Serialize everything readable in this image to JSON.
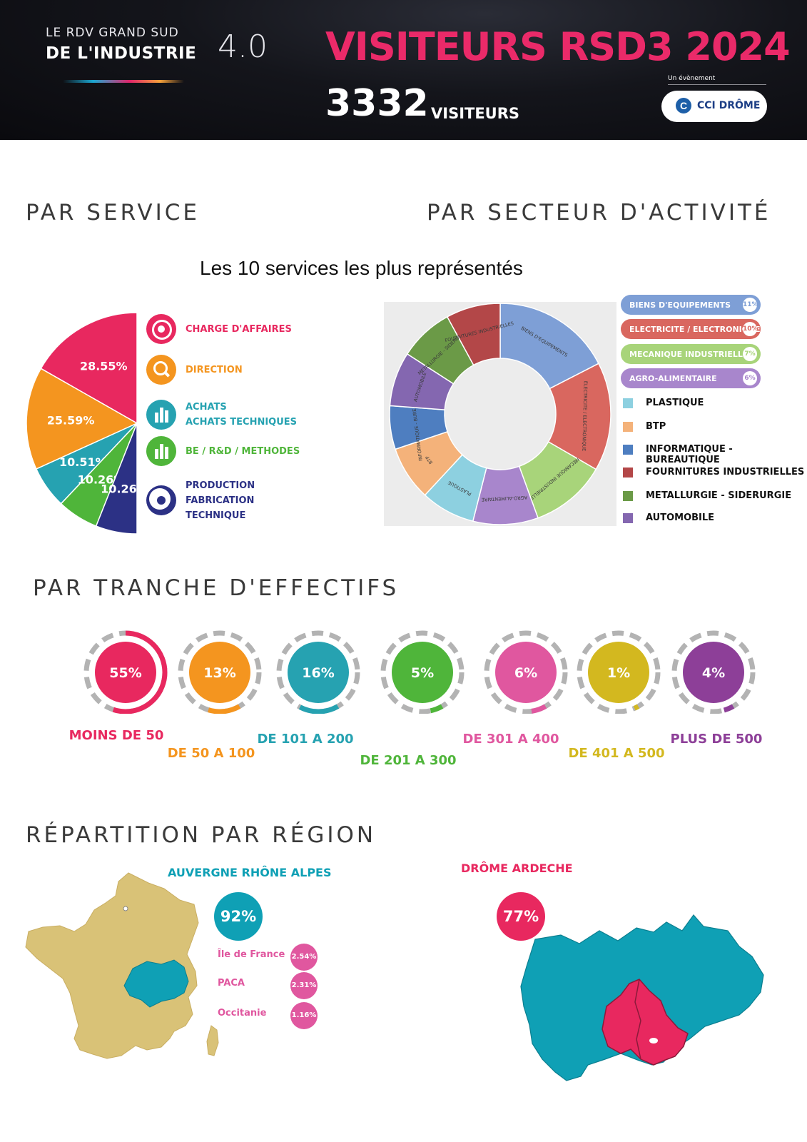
{
  "header": {
    "brand_line1": "LE RDV GRAND SUD",
    "brand_line2": "DE L'INDUSTRIE",
    "brand_version": "4.0",
    "title": "VISITEURS RSD3 2024",
    "visitor_count": "3332",
    "visitor_label": "VISITEURS",
    "event_by": "Un évènement",
    "organizer": "CCI DRÔME"
  },
  "sections": {
    "service": "PAR SERVICE",
    "activity": "PAR SECTEUR D'ACTIVITÉ",
    "headcount": "PAR TRANCHE D'EFFECTIFS",
    "region": "RÉPARTITION PAR RÉGION"
  },
  "chart_title": "Les 10 services les plus représentés",
  "chart_data": [
    {
      "type": "pie",
      "series": [
        {
          "label": "CHARGE D'AFFAIRES",
          "value": 28.55,
          "display": "28.55%",
          "color": "#e8285f"
        },
        {
          "label": "DIRECTION",
          "value": 25.59,
          "display": "25.59%",
          "color": "#f4951f"
        },
        {
          "label": "ACHATS / ACHATS TECHNIQUES",
          "value": 10.51,
          "display": "10.51%",
          "color": "#26a2b1"
        },
        {
          "label": "BE / R&D / METHODES",
          "value": 10.26,
          "display": "10.26%",
          "color": "#4fb53a"
        },
        {
          "label": "PRODUCTION FABRICATION TECHNIQUE",
          "value": 10.26,
          "display": "10.26%",
          "color": "#2c3185"
        }
      ],
      "legend": [
        {
          "lines": [
            "CHARGE D'AFFAIRES"
          ],
          "color": "#e8285f",
          "icon": "target-icon"
        },
        {
          "lines": [
            "DIRECTION"
          ],
          "color": "#f4951f",
          "icon": "search-icon"
        },
        {
          "lines": [
            "ACHATS",
            "ACHATS TECHNIQUES"
          ],
          "color": "#26a2b1",
          "icon": "bar-chart-icon"
        },
        {
          "lines": [
            "BE / R&D / METHODES"
          ],
          "color": "#4fb53a",
          "icon": "bar-chart-icon"
        },
        {
          "lines": [
            "PRODUCTION",
            "FABRICATION",
            "TECHNIQUE"
          ],
          "color": "#2c3185",
          "icon": "radio-icon"
        }
      ]
    },
    {
      "type": "pie",
      "series": [
        {
          "label": "BIENS D'EQUIPEMENTS",
          "value": 11,
          "color": "#7e9fd6"
        },
        {
          "label": "ELECTRICITE / ELECTRONIQUE",
          "value": 10,
          "color": "#d9675f"
        },
        {
          "label": "MECANIQUE INDUSTRIELLE",
          "value": 7,
          "color": "#a8d47a"
        },
        {
          "label": "AGRO-ALIMENTAIRE",
          "value": 6,
          "color": "#a886cc"
        },
        {
          "label": "PLASTIQUE",
          "value": 5,
          "color": "#8dd0e0"
        },
        {
          "label": "BTP",
          "value": 5,
          "color": "#f4b27a"
        },
        {
          "label": "INFORMATIQUE - BUREAUTIQUE",
          "value": 4,
          "color": "#4e7ec0"
        },
        {
          "label": "AUTOMOBILE",
          "value": 5,
          "color": "#8467b0"
        },
        {
          "label": "METALLURGIE - SIDERURGIE",
          "value": 5,
          "color": "#6b9a47"
        },
        {
          "label": "FOURNITURES INDUSTRIELLES",
          "value": 5,
          "color": "#b34748"
        }
      ],
      "ring_labels": [
        "BIENS D'EQUIPEMENTS",
        "ELECTRICITE / ELECTRONIQUE",
        "MECANIQUE INDUSTRIELLE",
        "AGRO-ALIMENTAIRE",
        "PLASTIQUE",
        "BTP",
        "INFORMATIQUE - BUREAUTIQUE",
        "AUTOMOBILE",
        "METALLURGIE - SIDERURGIE",
        "FOURNITURES INDUSTRIELLES"
      ],
      "legend_badges": [
        {
          "label": "BIENS D'EQUIPEMENTS",
          "pct": "11%",
          "color": "#7e9fd6"
        },
        {
          "label": "ELECTRICITE / ELECTRONIQUE",
          "pct": "10%",
          "color": "#d9675f"
        },
        {
          "label": "MECANIQUE INDUSTRIELLE",
          "pct": "7%",
          "color": "#a8d47a"
        },
        {
          "label": "AGRO-ALIMENTAIRE",
          "pct": "6%",
          "color": "#a886cc"
        }
      ],
      "legend_squares": [
        {
          "label": "PLASTIQUE",
          "color": "#8dd0e0"
        },
        {
          "label": "BTP",
          "color": "#f4b27a"
        },
        {
          "label": "INFORMATIQUE - BUREAUTIQUE",
          "color": "#4e7ec0"
        },
        {
          "label": "FOURNITURES INDUSTRIELLES",
          "color": "#b34748"
        },
        {
          "label": "METALLURGIE - SIDERURGIE",
          "color": "#6b9a47"
        },
        {
          "label": "AUTOMOBILE",
          "color": "#8467b0"
        }
      ]
    },
    {
      "type": "bar",
      "categories": [
        "MOINS DE 50",
        "DE 50 A 100",
        "DE 101 A 200",
        "DE 201 A 300",
        "DE 301 A 400",
        "DE 401 A 500",
        "PLUS DE 500"
      ],
      "values": [
        55,
        13,
        16,
        5,
        6,
        1,
        4
      ],
      "labels": [
        "55%",
        "13%",
        "16%",
        "5%",
        "6%",
        "1%",
        "4%"
      ],
      "colors": [
        "#e8285f",
        "#f4951f",
        "#26a2b1",
        "#4fb53a",
        "#e0579f",
        "#d3b81f",
        "#8d3f98"
      ]
    }
  ],
  "regions": {
    "main_name": "AUVERGNE RHÔNE ALPES",
    "main_pct": "92%",
    "others": [
      {
        "name": "Île de France",
        "pct": "2.54%"
      },
      {
        "name": "PACA",
        "pct": "2.31%"
      },
      {
        "name": "Occitanie",
        "pct": "1.16%"
      }
    ],
    "local_name": "DRÔME ARDECHE",
    "local_pct": "77%",
    "colors": {
      "aura": "#0fa0b5",
      "local": "#e8285f",
      "france": "#d9c277",
      "small": "#e0579f"
    }
  }
}
